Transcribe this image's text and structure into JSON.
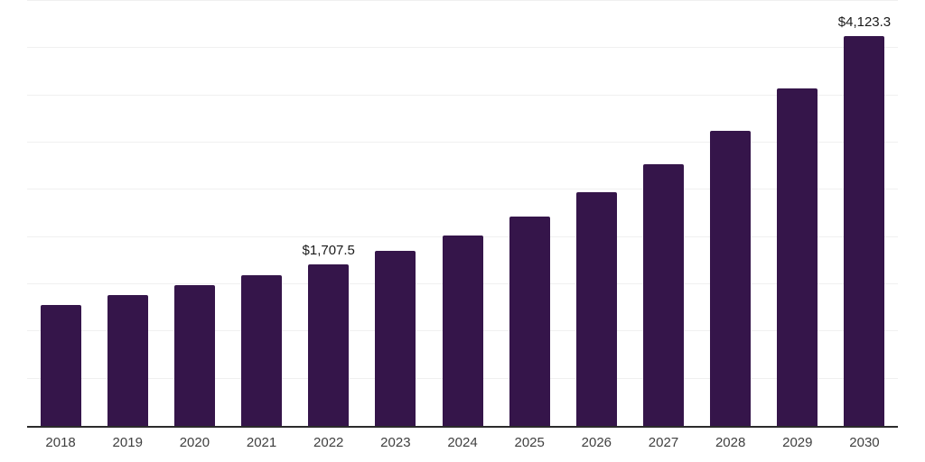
{
  "chart_data": {
    "type": "bar",
    "title": "",
    "xlabel": "",
    "ylabel": "",
    "categories": [
      "2018",
      "2019",
      "2020",
      "2021",
      "2022",
      "2023",
      "2024",
      "2025",
      "2026",
      "2027",
      "2028",
      "2029",
      "2030"
    ],
    "values": [
      1285,
      1390,
      1490,
      1595,
      1707.5,
      1855,
      2020,
      2215,
      2475,
      2770,
      3120,
      3570,
      4123.3
    ],
    "data_labels": [
      {
        "category": "2022",
        "text": "$1,707.5"
      },
      {
        "category": "2030",
        "text": "$4,123.3"
      }
    ],
    "ylim": [
      0,
      4500
    ],
    "gridline_step": 500,
    "grid": true,
    "legend_position": "none",
    "colors": {
      "bar": "#35154a",
      "axis_line": "#2b2b2b",
      "gridline": "#f0f0f0",
      "data_label": "#1a1a1a",
      "tick_label": "#404040",
      "background": "#ffffff"
    }
  }
}
